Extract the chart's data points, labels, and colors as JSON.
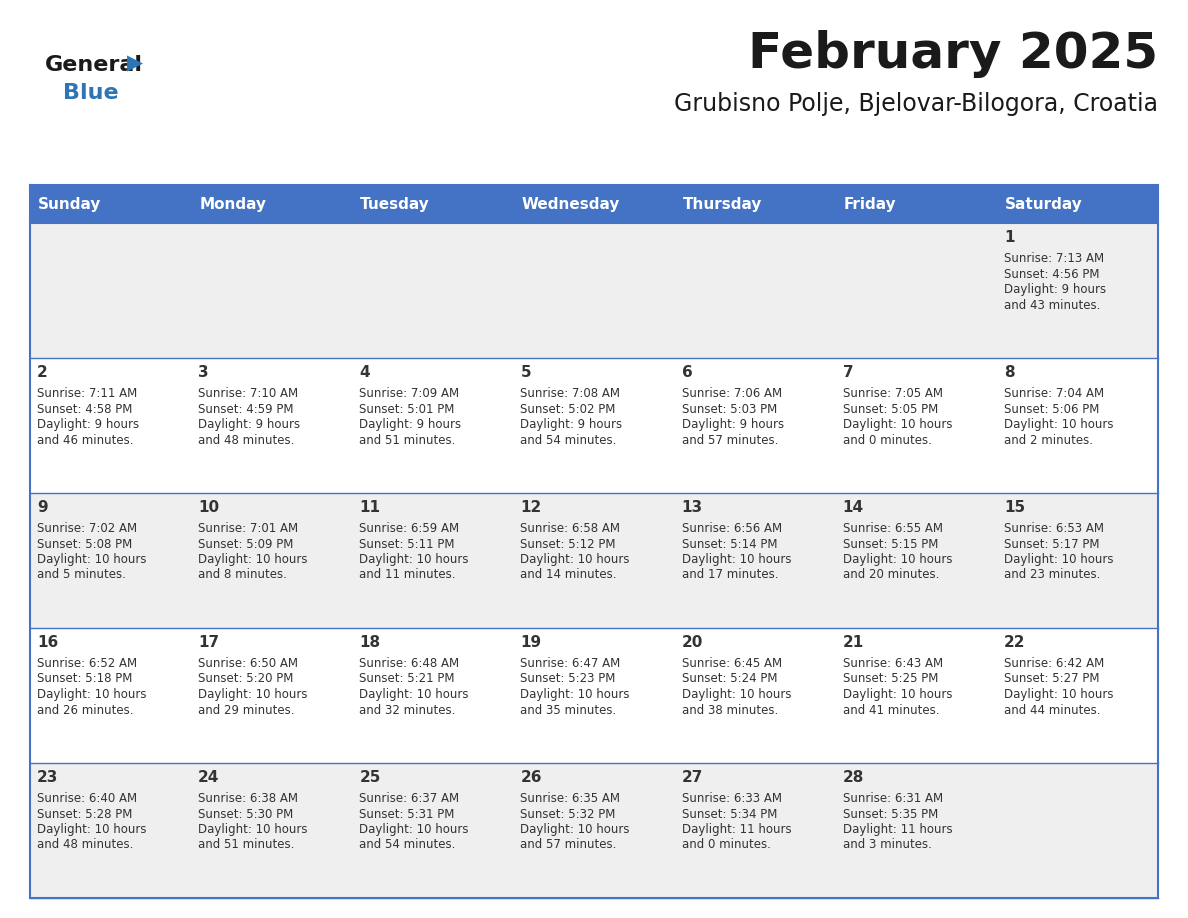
{
  "title": "February 2025",
  "subtitle": "Grubisno Polje, Bjelovar-Bilogora, Croatia",
  "header_bg": "#4472C4",
  "header_text_color": "#FFFFFF",
  "row_colors": [
    "#EFEFEF",
    "#FFFFFF",
    "#EFEFEF",
    "#FFFFFF",
    "#EFEFEF"
  ],
  "day_names": [
    "Sunday",
    "Monday",
    "Tuesday",
    "Wednesday",
    "Thursday",
    "Friday",
    "Saturday"
  ],
  "title_color": "#1a1a1a",
  "subtitle_color": "#1a1a1a",
  "date_color": "#333333",
  "info_color": "#333333",
  "divider_color": "#4472C4",
  "logo_general_color": "#1a1a1a",
  "logo_blue_color": "#2E75B6",
  "fig_width": 11.88,
  "fig_height": 9.18,
  "calendar_data": [
    {
      "day": 1,
      "col": 6,
      "row": 0,
      "sunrise": "7:13 AM",
      "sunset": "4:56 PM",
      "daylight": "9 hours and 43 minutes."
    },
    {
      "day": 2,
      "col": 0,
      "row": 1,
      "sunrise": "7:11 AM",
      "sunset": "4:58 PM",
      "daylight": "9 hours and 46 minutes."
    },
    {
      "day": 3,
      "col": 1,
      "row": 1,
      "sunrise": "7:10 AM",
      "sunset": "4:59 PM",
      "daylight": "9 hours and 48 minutes."
    },
    {
      "day": 4,
      "col": 2,
      "row": 1,
      "sunrise": "7:09 AM",
      "sunset": "5:01 PM",
      "daylight": "9 hours and 51 minutes."
    },
    {
      "day": 5,
      "col": 3,
      "row": 1,
      "sunrise": "7:08 AM",
      "sunset": "5:02 PM",
      "daylight": "9 hours and 54 minutes."
    },
    {
      "day": 6,
      "col": 4,
      "row": 1,
      "sunrise": "7:06 AM",
      "sunset": "5:03 PM",
      "daylight": "9 hours and 57 minutes."
    },
    {
      "day": 7,
      "col": 5,
      "row": 1,
      "sunrise": "7:05 AM",
      "sunset": "5:05 PM",
      "daylight": "10 hours and 0 minutes."
    },
    {
      "day": 8,
      "col": 6,
      "row": 1,
      "sunrise": "7:04 AM",
      "sunset": "5:06 PM",
      "daylight": "10 hours and 2 minutes."
    },
    {
      "day": 9,
      "col": 0,
      "row": 2,
      "sunrise": "7:02 AM",
      "sunset": "5:08 PM",
      "daylight": "10 hours and 5 minutes."
    },
    {
      "day": 10,
      "col": 1,
      "row": 2,
      "sunrise": "7:01 AM",
      "sunset": "5:09 PM",
      "daylight": "10 hours and 8 minutes."
    },
    {
      "day": 11,
      "col": 2,
      "row": 2,
      "sunrise": "6:59 AM",
      "sunset": "5:11 PM",
      "daylight": "10 hours and 11 minutes."
    },
    {
      "day": 12,
      "col": 3,
      "row": 2,
      "sunrise": "6:58 AM",
      "sunset": "5:12 PM",
      "daylight": "10 hours and 14 minutes."
    },
    {
      "day": 13,
      "col": 4,
      "row": 2,
      "sunrise": "6:56 AM",
      "sunset": "5:14 PM",
      "daylight": "10 hours and 17 minutes."
    },
    {
      "day": 14,
      "col": 5,
      "row": 2,
      "sunrise": "6:55 AM",
      "sunset": "5:15 PM",
      "daylight": "10 hours and 20 minutes."
    },
    {
      "day": 15,
      "col": 6,
      "row": 2,
      "sunrise": "6:53 AM",
      "sunset": "5:17 PM",
      "daylight": "10 hours and 23 minutes."
    },
    {
      "day": 16,
      "col": 0,
      "row": 3,
      "sunrise": "6:52 AM",
      "sunset": "5:18 PM",
      "daylight": "10 hours and 26 minutes."
    },
    {
      "day": 17,
      "col": 1,
      "row": 3,
      "sunrise": "6:50 AM",
      "sunset": "5:20 PM",
      "daylight": "10 hours and 29 minutes."
    },
    {
      "day": 18,
      "col": 2,
      "row": 3,
      "sunrise": "6:48 AM",
      "sunset": "5:21 PM",
      "daylight": "10 hours and 32 minutes."
    },
    {
      "day": 19,
      "col": 3,
      "row": 3,
      "sunrise": "6:47 AM",
      "sunset": "5:23 PM",
      "daylight": "10 hours and 35 minutes."
    },
    {
      "day": 20,
      "col": 4,
      "row": 3,
      "sunrise": "6:45 AM",
      "sunset": "5:24 PM",
      "daylight": "10 hours and 38 minutes."
    },
    {
      "day": 21,
      "col": 5,
      "row": 3,
      "sunrise": "6:43 AM",
      "sunset": "5:25 PM",
      "daylight": "10 hours and 41 minutes."
    },
    {
      "day": 22,
      "col": 6,
      "row": 3,
      "sunrise": "6:42 AM",
      "sunset": "5:27 PM",
      "daylight": "10 hours and 44 minutes."
    },
    {
      "day": 23,
      "col": 0,
      "row": 4,
      "sunrise": "6:40 AM",
      "sunset": "5:28 PM",
      "daylight": "10 hours and 48 minutes."
    },
    {
      "day": 24,
      "col": 1,
      "row": 4,
      "sunrise": "6:38 AM",
      "sunset": "5:30 PM",
      "daylight": "10 hours and 51 minutes."
    },
    {
      "day": 25,
      "col": 2,
      "row": 4,
      "sunrise": "6:37 AM",
      "sunset": "5:31 PM",
      "daylight": "10 hours and 54 minutes."
    },
    {
      "day": 26,
      "col": 3,
      "row": 4,
      "sunrise": "6:35 AM",
      "sunset": "5:32 PM",
      "daylight": "10 hours and 57 minutes."
    },
    {
      "day": 27,
      "col": 4,
      "row": 4,
      "sunrise": "6:33 AM",
      "sunset": "5:34 PM",
      "daylight": "11 hours and 0 minutes."
    },
    {
      "day": 28,
      "col": 5,
      "row": 4,
      "sunrise": "6:31 AM",
      "sunset": "5:35 PM",
      "daylight": "11 hours and 3 minutes."
    }
  ]
}
